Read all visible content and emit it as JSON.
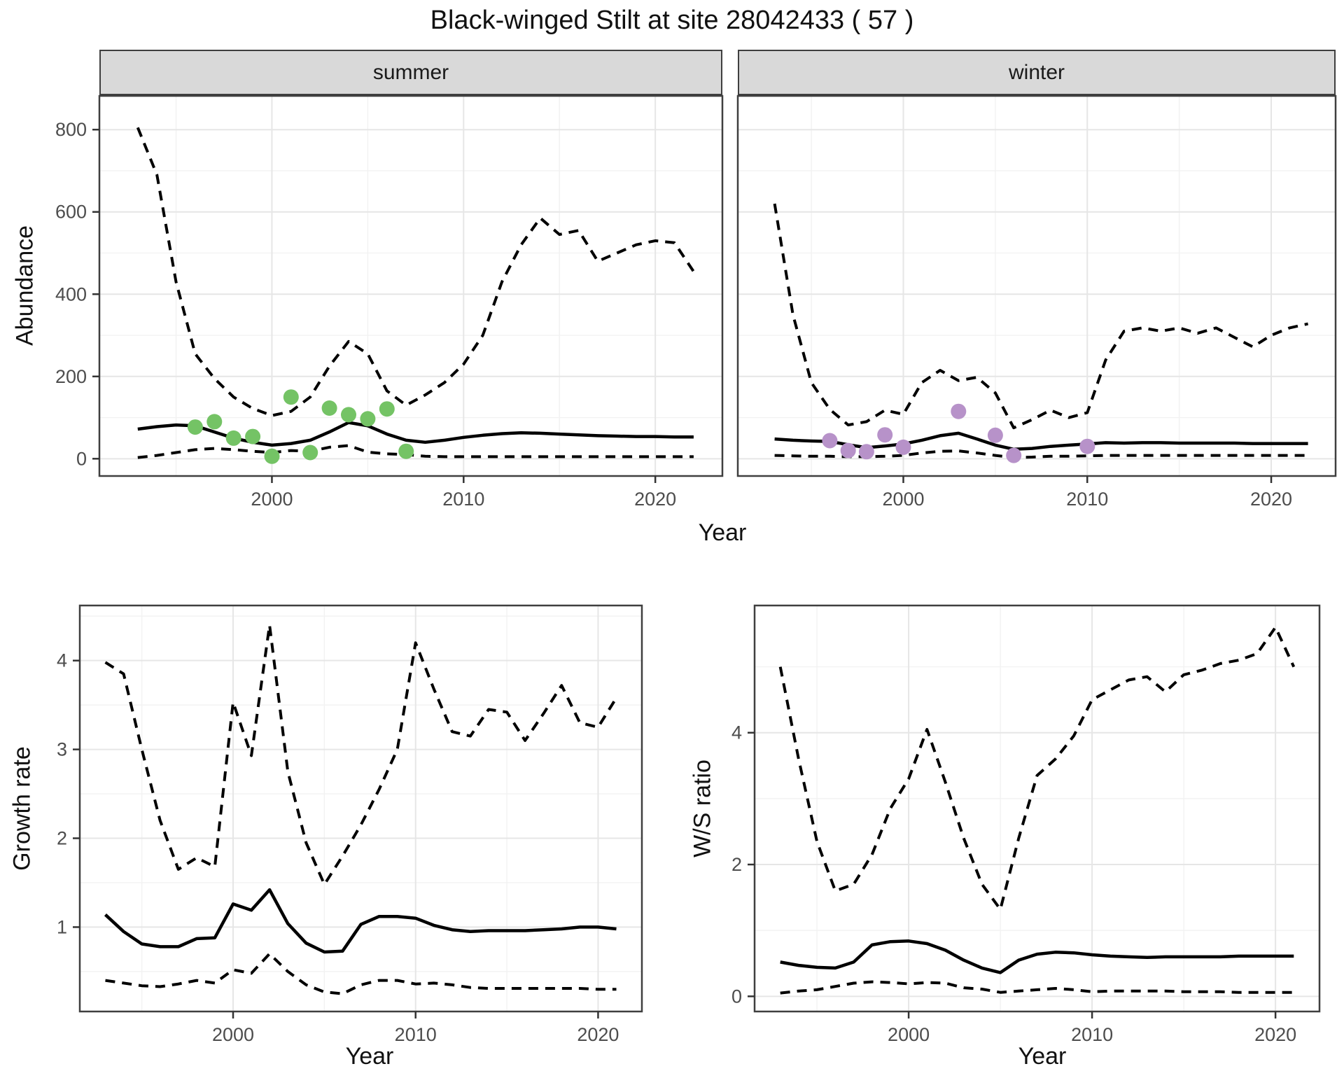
{
  "title": "Black-winged Stilt at site 28042433 ( 57 )",
  "colors": {
    "summer_point": "#74c365",
    "winter_point": "#b792c9",
    "line": "#000000",
    "grid_major": "#e6e6e6",
    "grid_minor": "#f2f2f2",
    "strip_bg": "#d9d9d9",
    "panel_border": "#3f3f3f",
    "tick_text": "#4d4d4d"
  },
  "chart_data": [
    {
      "id": "abundance-summer",
      "type": "line",
      "facet": "summer",
      "xlabel": "Year",
      "ylabel": "Abundance",
      "x": [
        1993,
        1994,
        1995,
        1996,
        1997,
        1998,
        1999,
        2000,
        2001,
        2002,
        2003,
        2004,
        2005,
        2006,
        2007,
        2008,
        2009,
        2010,
        2011,
        2012,
        2013,
        2014,
        2015,
        2016,
        2017,
        2018,
        2019,
        2020,
        2021,
        2022
      ],
      "series": [
        {
          "name": "upper 95% CI",
          "style": "dashed",
          "values": [
            805,
            690,
            430,
            255,
            195,
            150,
            122,
            105,
            115,
            150,
            225,
            285,
            255,
            165,
            130,
            155,
            185,
            230,
            300,
            430,
            520,
            585,
            545,
            555,
            480,
            500,
            520,
            530,
            525,
            455
          ]
        },
        {
          "name": "median estimate",
          "style": "solid",
          "values": [
            72,
            78,
            82,
            80,
            65,
            50,
            40,
            33,
            37,
            45,
            65,
            88,
            80,
            60,
            45,
            40,
            45,
            52,
            57,
            61,
            63,
            62,
            60,
            58,
            56,
            55,
            54,
            54,
            53,
            53
          ]
        },
        {
          "name": "lower 95% CI",
          "style": "dashed",
          "values": [
            3,
            8,
            15,
            22,
            25,
            22,
            18,
            15,
            20,
            18,
            28,
            32,
            16,
            12,
            10,
            6,
            5,
            5,
            5,
            5,
            5,
            5,
            5,
            5,
            5,
            5,
            5,
            5,
            5,
            5
          ]
        }
      ],
      "points": {
        "name": "observed summer counts",
        "color": "#74c365",
        "x": [
          1996,
          1997,
          1998,
          1999,
          2000,
          2001,
          2002,
          2003,
          2004,
          2005,
          2006,
          2007
        ],
        "y": [
          77,
          90,
          50,
          54,
          6,
          150,
          15,
          123,
          107,
          97,
          121,
          18
        ]
      },
      "xlim": [
        1991,
        2023.5
      ],
      "ylim": [
        -42,
        882
      ],
      "xticks": [
        2000,
        2010,
        2020
      ],
      "xminor": [
        1995,
        2005,
        2015
      ],
      "yticks": [
        0,
        200,
        400,
        600,
        800
      ],
      "yminor": [
        100,
        300,
        500,
        700
      ],
      "grid": true
    },
    {
      "id": "abundance-winter",
      "type": "line",
      "facet": "winter",
      "xlabel": "Year",
      "ylabel": "Abundance",
      "x": [
        1993,
        1994,
        1995,
        1996,
        1997,
        1998,
        1999,
        2000,
        2001,
        2002,
        2003,
        2004,
        2005,
        2006,
        2007,
        2008,
        2009,
        2010,
        2011,
        2012,
        2013,
        2014,
        2015,
        2016,
        2017,
        2018,
        2019,
        2020,
        2021,
        2022
      ],
      "series": [
        {
          "name": "upper 95% CI",
          "style": "dashed",
          "values": [
            620,
            350,
            185,
            120,
            82,
            90,
            118,
            108,
            185,
            215,
            190,
            198,
            160,
            75,
            95,
            118,
            100,
            112,
            240,
            310,
            318,
            310,
            318,
            305,
            318,
            295,
            272,
            300,
            318,
            328
          ]
        },
        {
          "name": "median estimate",
          "style": "solid",
          "values": [
            48,
            45,
            43,
            42,
            34,
            27,
            31,
            36,
            45,
            56,
            62,
            48,
            33,
            23,
            25,
            30,
            33,
            36,
            39,
            38,
            39,
            39,
            38,
            38,
            38,
            38,
            37,
            37,
            37,
            37
          ]
        },
        {
          "name": "lower 95% CI",
          "style": "dashed",
          "values": [
            8,
            7,
            6,
            6,
            5,
            5,
            6,
            8,
            14,
            18,
            19,
            14,
            8,
            3,
            4,
            6,
            6,
            7,
            8,
            8,
            8,
            8,
            8,
            8,
            8,
            8,
            8,
            8,
            8,
            8
          ]
        }
      ],
      "points": {
        "name": "observed winter counts",
        "color": "#b792c9",
        "x": [
          1996,
          1997,
          1998,
          1999,
          2000,
          2003,
          2005,
          2006,
          2010
        ],
        "y": [
          44,
          20,
          17,
          58,
          28,
          115,
          57,
          8,
          30
        ]
      },
      "xlim": [
        1991,
        2023.5
      ],
      "ylim": [
        -42,
        882
      ],
      "xticks": [
        2000,
        2010,
        2020
      ],
      "xminor": [
        1995,
        2005,
        2015
      ],
      "yticks": [
        0,
        200,
        400,
        600,
        800
      ],
      "yminor": [
        100,
        300,
        500,
        700
      ],
      "grid": true
    },
    {
      "id": "growth-rate",
      "type": "line",
      "facet": "",
      "xlabel": "Year",
      "ylabel": "Growth rate",
      "x": [
        1993,
        1994,
        1995,
        1996,
        1997,
        1998,
        1999,
        2000,
        2001,
        2002,
        2003,
        2004,
        2005,
        2006,
        2007,
        2008,
        2009,
        2010,
        2011,
        2012,
        2013,
        2014,
        2015,
        2016,
        2017,
        2018,
        2019,
        2020,
        2021
      ],
      "series": [
        {
          "name": "upper 95% CI",
          "style": "dashed",
          "values": [
            3.98,
            3.85,
            3.0,
            2.2,
            1.65,
            1.78,
            1.68,
            3.53,
            2.93,
            4.4,
            2.75,
            1.95,
            1.48,
            1.8,
            2.15,
            2.55,
            3.0,
            4.2,
            3.68,
            3.2,
            3.15,
            3.45,
            3.42,
            3.1,
            3.4,
            3.72,
            3.3,
            3.25,
            3.58
          ]
        },
        {
          "name": "median estimate",
          "style": "solid",
          "values": [
            1.14,
            0.95,
            0.81,
            0.78,
            0.78,
            0.87,
            0.88,
            1.26,
            1.19,
            1.42,
            1.04,
            0.82,
            0.72,
            0.73,
            1.03,
            1.12,
            1.12,
            1.1,
            1.02,
            0.97,
            0.95,
            0.96,
            0.96,
            0.96,
            0.97,
            0.98,
            1.0,
            1.0,
            0.98
          ]
        },
        {
          "name": "lower 95% CI",
          "style": "dashed",
          "values": [
            0.4,
            0.37,
            0.34,
            0.33,
            0.36,
            0.4,
            0.37,
            0.52,
            0.48,
            0.7,
            0.5,
            0.35,
            0.27,
            0.25,
            0.35,
            0.4,
            0.4,
            0.36,
            0.37,
            0.35,
            0.32,
            0.31,
            0.31,
            0.31,
            0.31,
            0.31,
            0.31,
            0.3,
            0.3
          ]
        }
      ],
      "points": null,
      "xlim": [
        1991.6,
        2022.4
      ],
      "ylim": [
        0.05,
        4.62
      ],
      "xticks": [
        2000,
        2010,
        2020
      ],
      "xminor": [
        1995,
        2005,
        2015
      ],
      "yticks": [
        1,
        2,
        3,
        4
      ],
      "yminor": [
        0.5,
        1.5,
        2.5,
        3.5,
        4.5
      ],
      "grid": true
    },
    {
      "id": "ws-ratio",
      "type": "line",
      "facet": "",
      "xlabel": "Year",
      "ylabel": "W/S ratio",
      "x": [
        1993,
        1994,
        1995,
        1996,
        1997,
        1998,
        1999,
        2000,
        2001,
        2002,
        2003,
        2004,
        2005,
        2006,
        2007,
        2008,
        2009,
        2010,
        2011,
        2012,
        2013,
        2014,
        2015,
        2016,
        2017,
        2018,
        2019,
        2020,
        2021
      ],
      "series": [
        {
          "name": "upper 95% CI",
          "style": "dashed",
          "values": [
            5.0,
            3.6,
            2.35,
            1.6,
            1.7,
            2.15,
            2.85,
            3.3,
            4.05,
            3.25,
            2.4,
            1.7,
            1.32,
            2.4,
            3.35,
            3.6,
            3.95,
            4.5,
            4.65,
            4.8,
            4.85,
            4.62,
            4.88,
            4.95,
            5.05,
            5.1,
            5.2,
            5.6,
            5.0
          ]
        },
        {
          "name": "median estimate",
          "style": "solid",
          "values": [
            0.52,
            0.47,
            0.44,
            0.43,
            0.52,
            0.78,
            0.83,
            0.84,
            0.8,
            0.7,
            0.55,
            0.43,
            0.36,
            0.55,
            0.64,
            0.67,
            0.66,
            0.63,
            0.61,
            0.6,
            0.59,
            0.6,
            0.6,
            0.6,
            0.6,
            0.61,
            0.61,
            0.61,
            0.61
          ]
        },
        {
          "name": "lower 95% CI",
          "style": "dashed",
          "values": [
            0.05,
            0.08,
            0.1,
            0.15,
            0.2,
            0.22,
            0.21,
            0.19,
            0.21,
            0.2,
            0.13,
            0.11,
            0.06,
            0.08,
            0.1,
            0.12,
            0.1,
            0.07,
            0.08,
            0.08,
            0.08,
            0.08,
            0.07,
            0.07,
            0.07,
            0.06,
            0.06,
            0.06,
            0.06
          ]
        }
      ],
      "points": null,
      "xlim": [
        1991.6,
        2022.4
      ],
      "ylim": [
        -0.23,
        5.93
      ],
      "xticks": [
        2000,
        2010,
        2020
      ],
      "xminor": [
        1995,
        2005,
        2015
      ],
      "yticks": [
        0,
        2,
        4
      ],
      "yminor": [
        1,
        3,
        5
      ],
      "grid": true
    }
  ]
}
